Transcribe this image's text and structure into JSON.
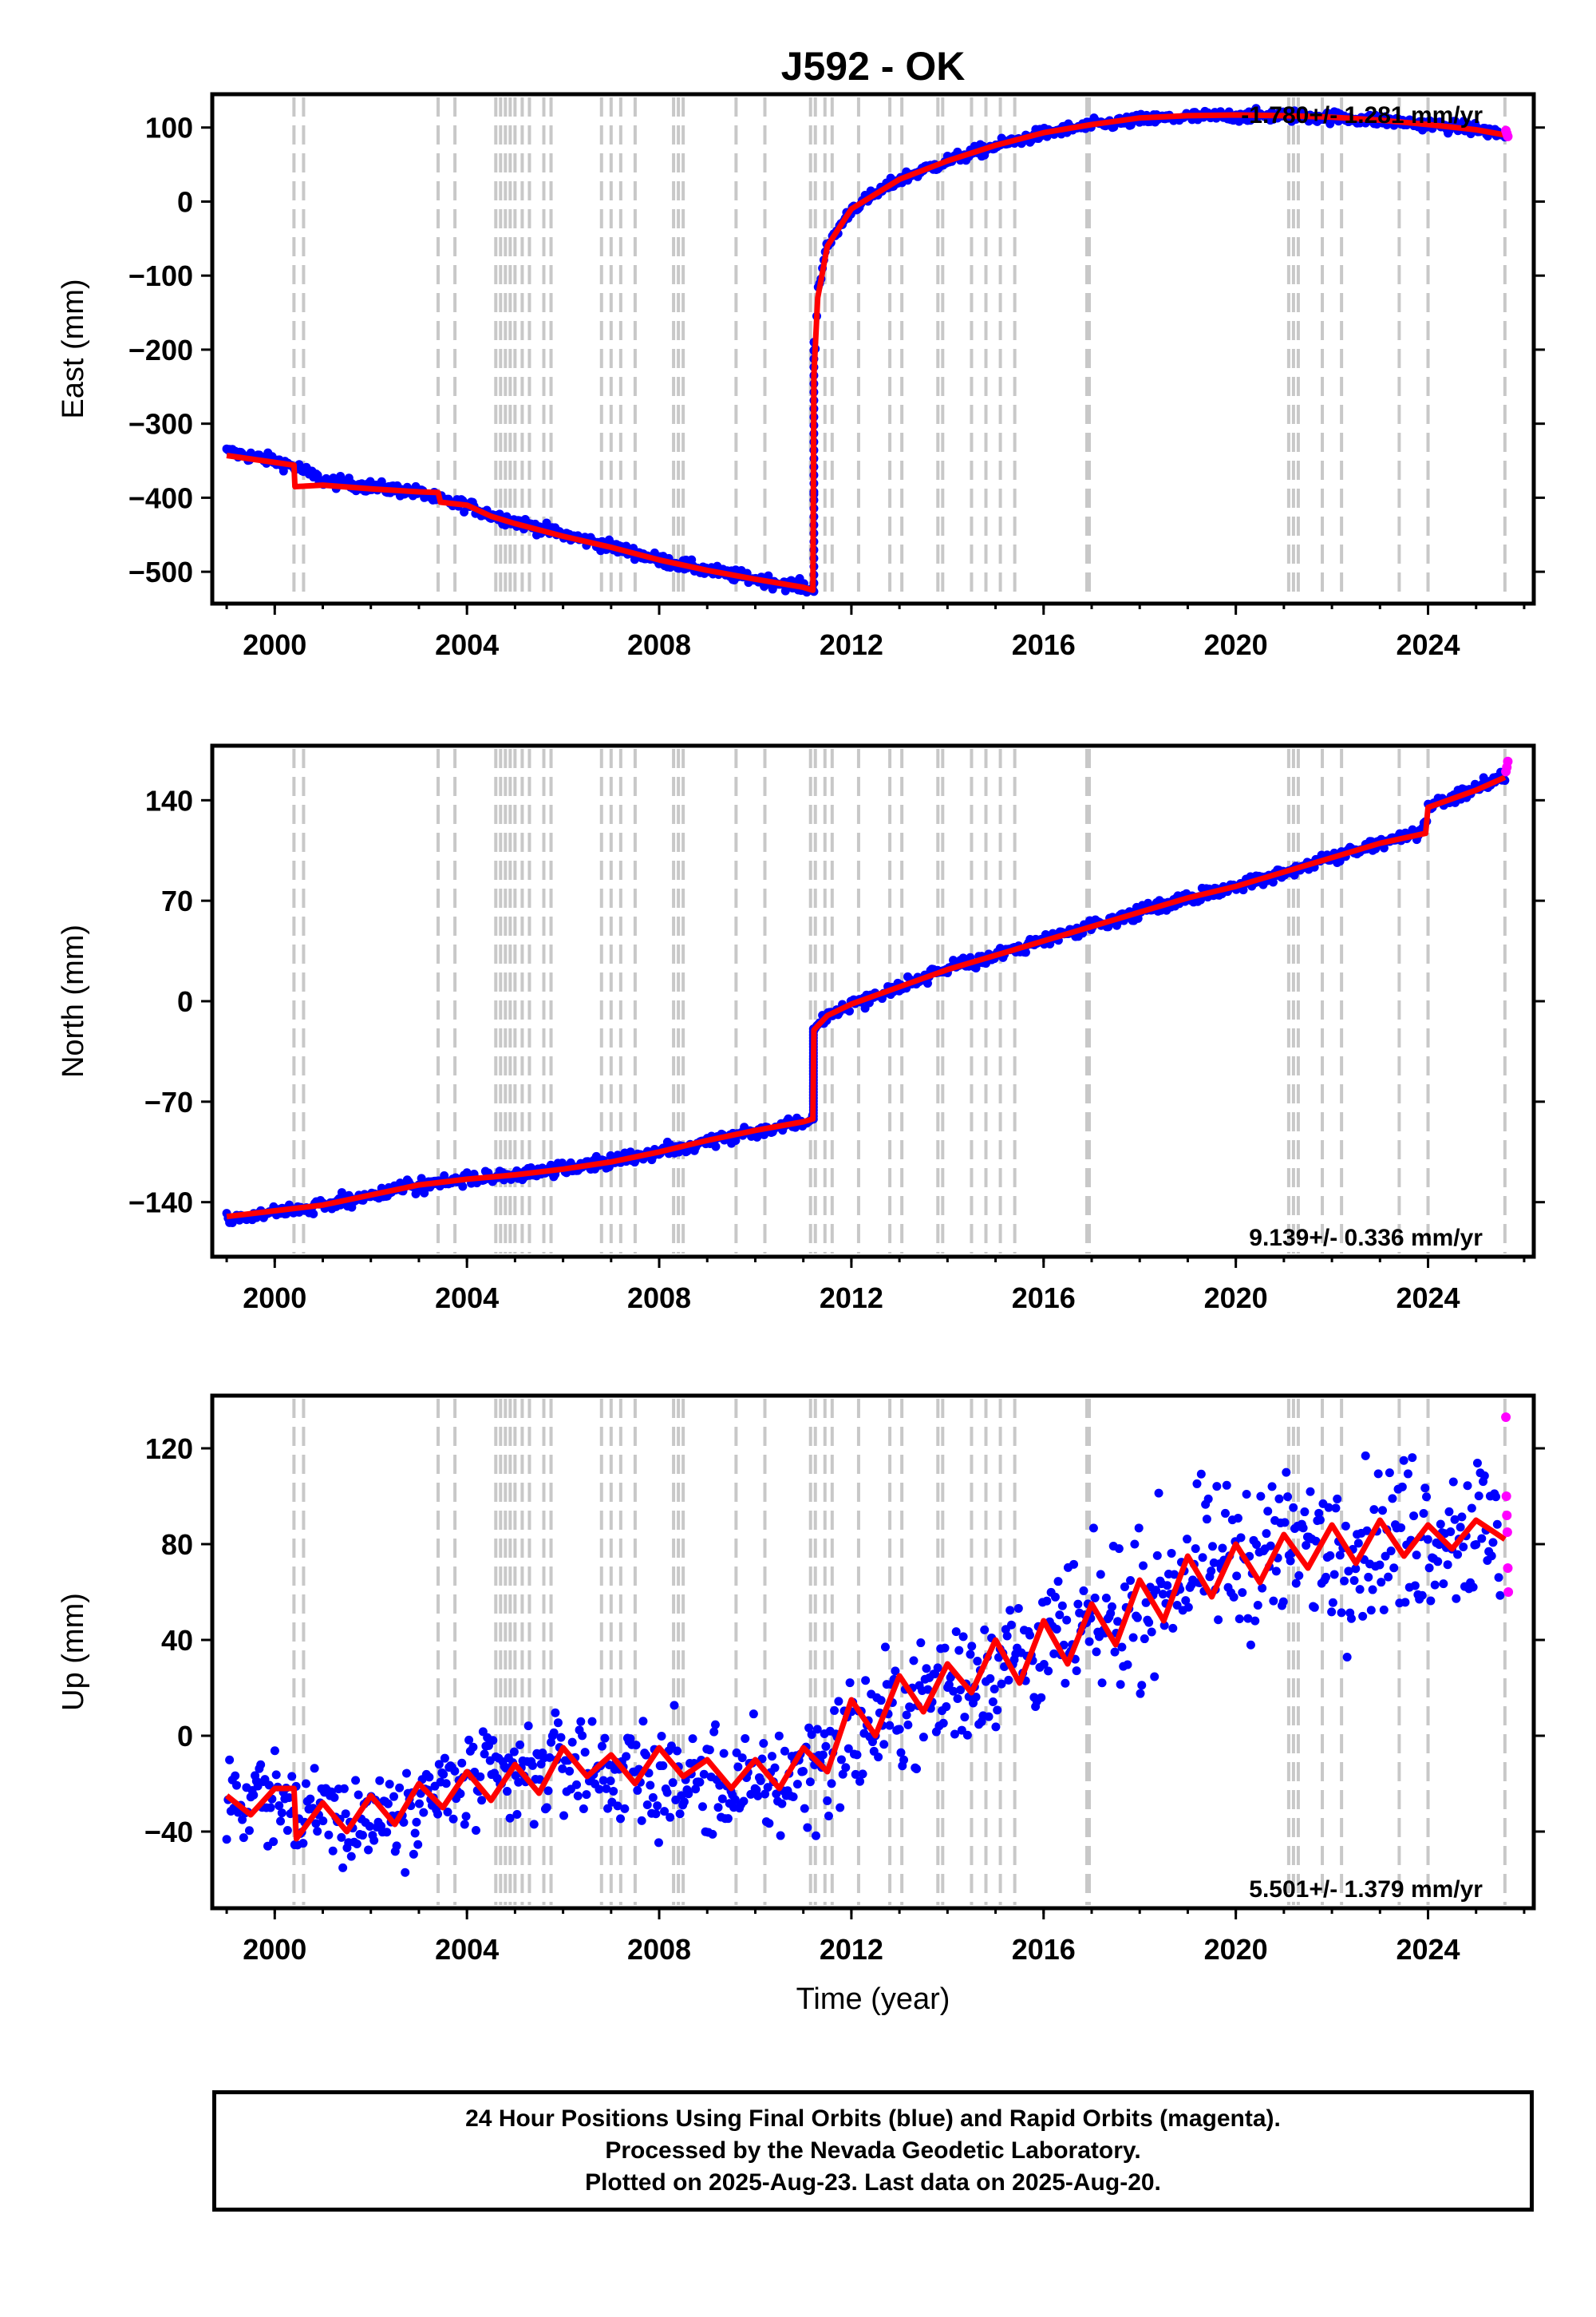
{
  "figure": {
    "title": "J592 - OK",
    "xlabel": "Time (year)",
    "colors": {
      "final": "#0000ff",
      "rapid": "#ff00ff",
      "model": "#ff0000",
      "event_line": "#c8c8c8"
    }
  },
  "footer": {
    "line1": "24 Hour Positions Using Final Orbits (blue) and Rapid Orbits (magenta).",
    "line2": "Processed by the Nevada Geodetic Laboratory.",
    "line3": "Plotted on 2025-Aug-23. Last data on 2025-Aug-20."
  },
  "chart_data": [
    {
      "type": "scatter",
      "panel": "east",
      "ylabel": "East (mm)",
      "rate_label": "-1.780+/- 1.281 mm/yr",
      "rate_position": "top-right",
      "xlim": [
        1998.7,
        2026.2
      ],
      "ylim": [
        -543,
        145
      ],
      "xticks": [
        2000,
        2004,
        2008,
        2012,
        2016,
        2020,
        2024
      ],
      "yticks": [
        -500,
        -400,
        -300,
        -200,
        -100,
        0,
        100
      ],
      "event_lines": [
        2000.4,
        2000.6,
        2003.4,
        2003.75,
        2004.6,
        2004.7,
        2004.8,
        2004.9,
        2005.0,
        2005.15,
        2005.3,
        2005.6,
        2005.75,
        2006.8,
        2007.0,
        2007.2,
        2007.5,
        2008.3,
        2008.4,
        2008.5,
        2009.6,
        2010.2,
        2011.15,
        2011.25,
        2011.45,
        2011.6,
        2012.15,
        2012.8,
        2013.05,
        2013.8,
        2013.9,
        2014.5,
        2014.8,
        2015.1,
        2015.4,
        2016.9,
        2016.95,
        2021.1,
        2021.2,
        2021.3,
        2021.8,
        2022.2,
        2023.4,
        2024.0,
        2025.6
      ],
      "series": [
        {
          "name": "Final Orbits",
          "color": "#0000ff",
          "x": [
            1999.0,
            2000.0,
            2000.5,
            2001.0,
            2002.0,
            2003.0,
            2003.5,
            2004.0,
            2004.5,
            2005.0,
            2006.0,
            2007.0,
            2008.0,
            2009.0,
            2010.0,
            2011.0,
            2011.2,
            2011.25,
            2011.3,
            2011.5,
            2012.0,
            2013.0,
            2014.0,
            2015.0,
            2016.0,
            2017.0,
            2018.0,
            2019.0,
            2020.0,
            2021.0,
            2022.0,
            2023.0,
            2024.0,
            2025.0,
            2025.6
          ],
          "y": [
            -338,
            -350,
            -360,
            -377,
            -385,
            -393,
            -405,
            -410,
            -423,
            -432,
            -450,
            -466,
            -484,
            -498,
            -510,
            -520,
            -527,
            -190,
            -120,
            -60,
            -10,
            30,
            55,
            75,
            92,
            103,
            110,
            114,
            116,
            116,
            114,
            110,
            104,
            98,
            90
          ]
        },
        {
          "name": "Rapid Orbits",
          "color": "#ff00ff",
          "x": [
            2025.62,
            2025.64,
            2025.66
          ],
          "y": [
            96,
            92,
            88
          ]
        },
        {
          "name": "Model",
          "color": "#ff0000",
          "x": [
            1999.0,
            2000.4,
            2000.42,
            2001.0,
            2002.0,
            2003.0,
            2003.4,
            2003.45,
            2004.0,
            2004.5,
            2005.0,
            2006.0,
            2007.0,
            2008.0,
            2009.0,
            2010.0,
            2011.0,
            2011.2,
            2011.22,
            2011.3,
            2011.5,
            2012.0,
            2013.0,
            2014.0,
            2015.0,
            2016.0,
            2017.0,
            2018.0,
            2019.0,
            2020.0,
            2021.0,
            2022.0,
            2023.0,
            2024.0,
            2025.0,
            2025.6
          ],
          "y": [
            -343,
            -356,
            -385,
            -383,
            -388,
            -392,
            -393,
            -406,
            -410,
            -425,
            -435,
            -452,
            -467,
            -484,
            -498,
            -510,
            -521,
            -525,
            -235,
            -130,
            -60,
            -10,
            30,
            55,
            76,
            93,
            104,
            113,
            116,
            117,
            116,
            114,
            110,
            104,
            97,
            90
          ]
        }
      ]
    },
    {
      "type": "scatter",
      "panel": "north",
      "ylabel": "North (mm)",
      "rate_label": "9.139+/- 0.336 mm/yr",
      "rate_position": "bottom-right",
      "xlim": [
        1998.7,
        2026.2
      ],
      "ylim": [
        -178,
        178
      ],
      "xticks": [
        2000,
        2004,
        2008,
        2012,
        2016,
        2020,
        2024
      ],
      "yticks": [
        -140,
        -70,
        0,
        70,
        140
      ],
      "event_lines": [
        2000.4,
        2000.6,
        2003.4,
        2003.75,
        2004.6,
        2004.7,
        2004.8,
        2004.9,
        2005.0,
        2005.15,
        2005.3,
        2005.6,
        2005.75,
        2006.8,
        2007.0,
        2007.2,
        2007.5,
        2008.3,
        2008.4,
        2008.5,
        2009.6,
        2010.2,
        2011.15,
        2011.25,
        2011.45,
        2011.6,
        2012.15,
        2012.8,
        2013.05,
        2013.8,
        2013.9,
        2014.5,
        2014.8,
        2015.1,
        2015.4,
        2016.9,
        2016.95,
        2021.1,
        2021.2,
        2021.3,
        2021.8,
        2022.2,
        2023.4,
        2024.0,
        2025.6
      ],
      "series": [
        {
          "name": "Final Orbits",
          "color": "#0000ff",
          "x": [
            1999.0,
            2000.0,
            2001.0,
            2002.0,
            2003.0,
            2004.0,
            2005.0,
            2006.0,
            2007.0,
            2008.0,
            2009.0,
            2010.0,
            2011.0,
            2011.2,
            2011.22,
            2011.5,
            2012.0,
            2013.0,
            2014.0,
            2015.0,
            2016.0,
            2017.0,
            2018.0,
            2019.0,
            2020.0,
            2021.0,
            2022.0,
            2023.0,
            2023.9,
            2024.0,
            2025.0,
            2025.6
          ],
          "y": [
            -152,
            -147,
            -143,
            -135,
            -128,
            -124,
            -121,
            -117,
            -112,
            -105,
            -97,
            -90,
            -84,
            -82,
            -20,
            -10,
            -2,
            10,
            22,
            32,
            42,
            52,
            62,
            72,
            80,
            90,
            100,
            110,
            118,
            135,
            148,
            157
          ]
        },
        {
          "name": "Rapid Orbits",
          "color": "#ff00ff",
          "x": [
            2025.62,
            2025.64,
            2025.66
          ],
          "y": [
            160,
            163,
            167
          ]
        },
        {
          "name": "Model",
          "color": "#ff0000",
          "x": [
            1999.0,
            2000.0,
            2001.0,
            2002.0,
            2003.0,
            2004.0,
            2005.0,
            2006.0,
            2007.0,
            2008.0,
            2009.0,
            2010.0,
            2011.0,
            2011.2,
            2011.22,
            2011.5,
            2012.0,
            2013.0,
            2014.0,
            2015.0,
            2016.0,
            2017.0,
            2018.0,
            2019.0,
            2020.0,
            2021.0,
            2022.0,
            2023.0,
            2023.95,
            2024.0,
            2025.0,
            2025.6
          ],
          "y": [
            -150,
            -146,
            -142,
            -135,
            -128,
            -124,
            -121,
            -117,
            -112,
            -105,
            -97,
            -90,
            -84,
            -82,
            -20,
            -10,
            -2,
            10,
            22,
            32,
            42,
            52,
            62,
            72,
            80,
            90,
            100,
            110,
            117,
            135,
            147,
            156
          ]
        }
      ]
    },
    {
      "type": "scatter",
      "panel": "up",
      "ylabel": "Up (mm)",
      "rate_label": "5.501+/- 1.379 mm/yr",
      "rate_position": "bottom-right",
      "xlim": [
        1998.7,
        2026.2
      ],
      "ylim": [
        -72,
        142
      ],
      "xticks": [
        2000,
        2004,
        2008,
        2012,
        2016,
        2020,
        2024
      ],
      "yticks": [
        -40,
        0,
        40,
        80,
        120
      ],
      "event_lines": [
        2000.4,
        2000.6,
        2003.4,
        2003.75,
        2004.6,
        2004.7,
        2004.8,
        2004.9,
        2005.0,
        2005.15,
        2005.3,
        2005.6,
        2005.75,
        2006.8,
        2007.0,
        2007.2,
        2007.5,
        2008.3,
        2008.4,
        2008.5,
        2009.6,
        2010.2,
        2011.15,
        2011.25,
        2011.45,
        2011.6,
        2012.15,
        2012.8,
        2013.05,
        2013.8,
        2013.9,
        2014.5,
        2014.8,
        2015.1,
        2015.4,
        2016.9,
        2016.95,
        2021.1,
        2021.2,
        2021.3,
        2021.8,
        2022.2,
        2023.4,
        2024.0,
        2025.6
      ],
      "series": [
        {
          "name": "Final Orbits",
          "color": "#0000ff",
          "x": [
            1999.0,
            2000.0,
            2001.0,
            2002.0,
            2003.0,
            2004.0,
            2005.0,
            2006.0,
            2007.0,
            2008.0,
            2009.0,
            2010.0,
            2011.0,
            2012.0,
            2013.0,
            2014.0,
            2015.0,
            2016.0,
            2017.0,
            2018.0,
            2019.0,
            2020.0,
            2021.0,
            2022.0,
            2023.0,
            2024.0,
            2025.0,
            2025.5
          ],
          "y": [
            -25,
            -28,
            -32,
            -35,
            -25,
            -20,
            -18,
            -10,
            -15,
            -18,
            -20,
            -22,
            -15,
            0,
            10,
            20,
            30,
            38,
            45,
            55,
            70,
            75,
            78,
            80,
            82,
            85,
            88,
            80
          ]
        },
        {
          "name": "Rapid Orbits",
          "color": "#ff00ff",
          "x": [
            2025.62,
            2025.63,
            2025.64,
            2025.65,
            2025.66,
            2025.67
          ],
          "y": [
            133,
            100,
            92,
            85,
            70,
            60
          ]
        },
        {
          "name": "Model",
          "color": "#ff0000",
          "x": [
            1999.0,
            1999.5,
            2000.0,
            2000.4,
            2000.45,
            2001.0,
            2001.5,
            2002.0,
            2002.5,
            2003.0,
            2003.5,
            2004.0,
            2004.5,
            2005.0,
            2005.5,
            2006.0,
            2006.5,
            2007.0,
            2007.5,
            2008.0,
            2008.5,
            2009.0,
            2009.5,
            2010.0,
            2010.5,
            2011.0,
            2011.5,
            2012.0,
            2012.5,
            2013.0,
            2013.5,
            2014.0,
            2014.5,
            2015.0,
            2015.5,
            2016.0,
            2016.5,
            2017.0,
            2017.5,
            2018.0,
            2018.5,
            2019.0,
            2019.5,
            2020.0,
            2020.5,
            2021.0,
            2021.5,
            2022.0,
            2022.5,
            2023.0,
            2023.5,
            2024.0,
            2024.5,
            2025.0,
            2025.6
          ],
          "y": [
            -25,
            -33,
            -22,
            -22,
            -43,
            -28,
            -40,
            -25,
            -37,
            -20,
            -30,
            -15,
            -27,
            -12,
            -24,
            -5,
            -17,
            -8,
            -20,
            -5,
            -17,
            -10,
            -22,
            -10,
            -22,
            -5,
            -15,
            15,
            0,
            25,
            10,
            30,
            18,
            40,
            22,
            48,
            30,
            55,
            38,
            65,
            48,
            75,
            58,
            80,
            64,
            84,
            70,
            88,
            72,
            90,
            75,
            88,
            78,
            90,
            82
          ]
        }
      ]
    }
  ]
}
